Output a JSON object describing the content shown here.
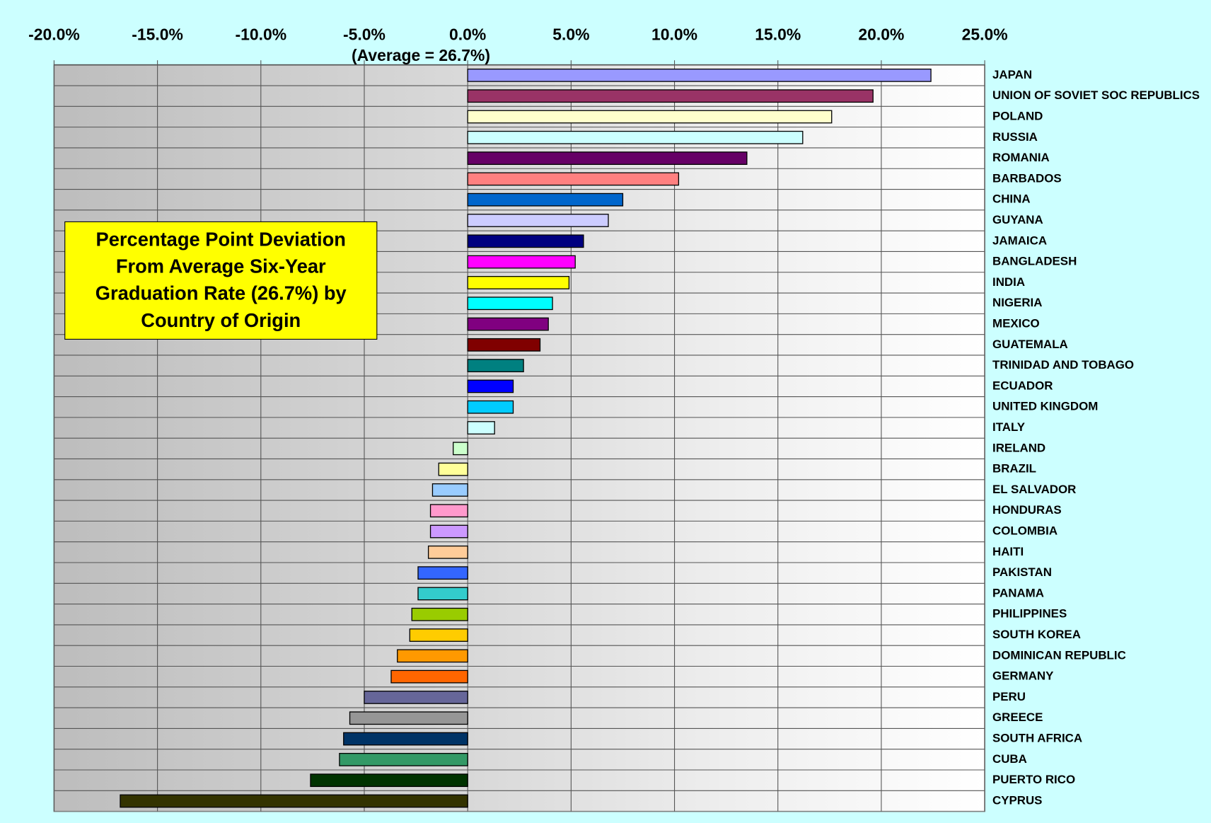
{
  "chart_data": {
    "type": "hbar",
    "title": "Percentage Point Deviation From Average Six-Year Graduation Rate (26.7%) by Country of Origin",
    "annotation": "(Average = 26.7%)",
    "categories": [
      "JAPAN",
      "UNION OF SOVIET SOC REPUBLICS",
      "POLAND",
      "RUSSIA",
      "ROMANIA",
      "BARBADOS",
      "CHINA",
      "GUYANA",
      "JAMAICA",
      "BANGLADESH",
      "INDIA",
      "NIGERIA",
      "MEXICO",
      "GUATEMALA",
      "TRINIDAD AND TOBAGO",
      "ECUADOR",
      "UNITED KINGDOM",
      "ITALY",
      "IRELAND",
      "BRAZIL",
      "EL SALVADOR",
      "HONDURAS",
      "COLOMBIA",
      "HAITI",
      "PAKISTAN",
      "PANAMA",
      "PHILIPPINES",
      "SOUTH KOREA",
      "DOMINICAN REPUBLIC",
      "GERMANY",
      "PERU",
      "GREECE",
      "SOUTH AFRICA",
      "CUBA",
      "PUERTO RICO",
      "CYPRUS"
    ],
    "values": [
      22.4,
      19.6,
      17.6,
      16.2,
      13.5,
      10.2,
      7.5,
      6.8,
      5.6,
      5.2,
      4.9,
      4.1,
      3.9,
      3.5,
      2.7,
      2.2,
      2.2,
      1.3,
      -0.7,
      -1.4,
      -1.7,
      -1.8,
      -1.8,
      -1.9,
      -2.4,
      -2.4,
      -2.7,
      -2.8,
      -3.4,
      -3.7,
      -5.0,
      -5.7,
      -6.0,
      -6.2,
      -7.6,
      -16.8
    ],
    "colors": [
      "#9999ff",
      "#993366",
      "#ffffcc",
      "#ccffff",
      "#660066",
      "#ff8080",
      "#0066cc",
      "#ccccff",
      "#000080",
      "#ff00ff",
      "#ffff00",
      "#00ffff",
      "#800080",
      "#800000",
      "#008080",
      "#0000ff",
      "#00ccff",
      "#ccffff",
      "#ccffcc",
      "#ffff99",
      "#99ccff",
      "#ff99cc",
      "#cc99ff",
      "#ffcc99",
      "#3366ff",
      "#33cccc",
      "#99cc00",
      "#ffcc00",
      "#ff9900",
      "#ff6600",
      "#666699",
      "#969696",
      "#003366",
      "#339966",
      "#003300",
      "#333300"
    ],
    "xlim": [
      -20,
      25
    ],
    "xticks": [
      {
        "value": -20,
        "label": "-20.0%"
      },
      {
        "value": -15,
        "label": "-15.0%"
      },
      {
        "value": -10,
        "label": "-10.0%"
      },
      {
        "value": -5,
        "label": "-5.0%"
      },
      {
        "value": 0,
        "label": "0.0%"
      },
      {
        "value": 5,
        "label": "5.0%"
      },
      {
        "value": 10,
        "label": "10.0%"
      },
      {
        "value": 15,
        "label": "15.0%"
      },
      {
        "value": 20,
        "label": "20.0%"
      },
      {
        "value": 25,
        "label": "25.0%"
      }
    ],
    "grid": true
  }
}
